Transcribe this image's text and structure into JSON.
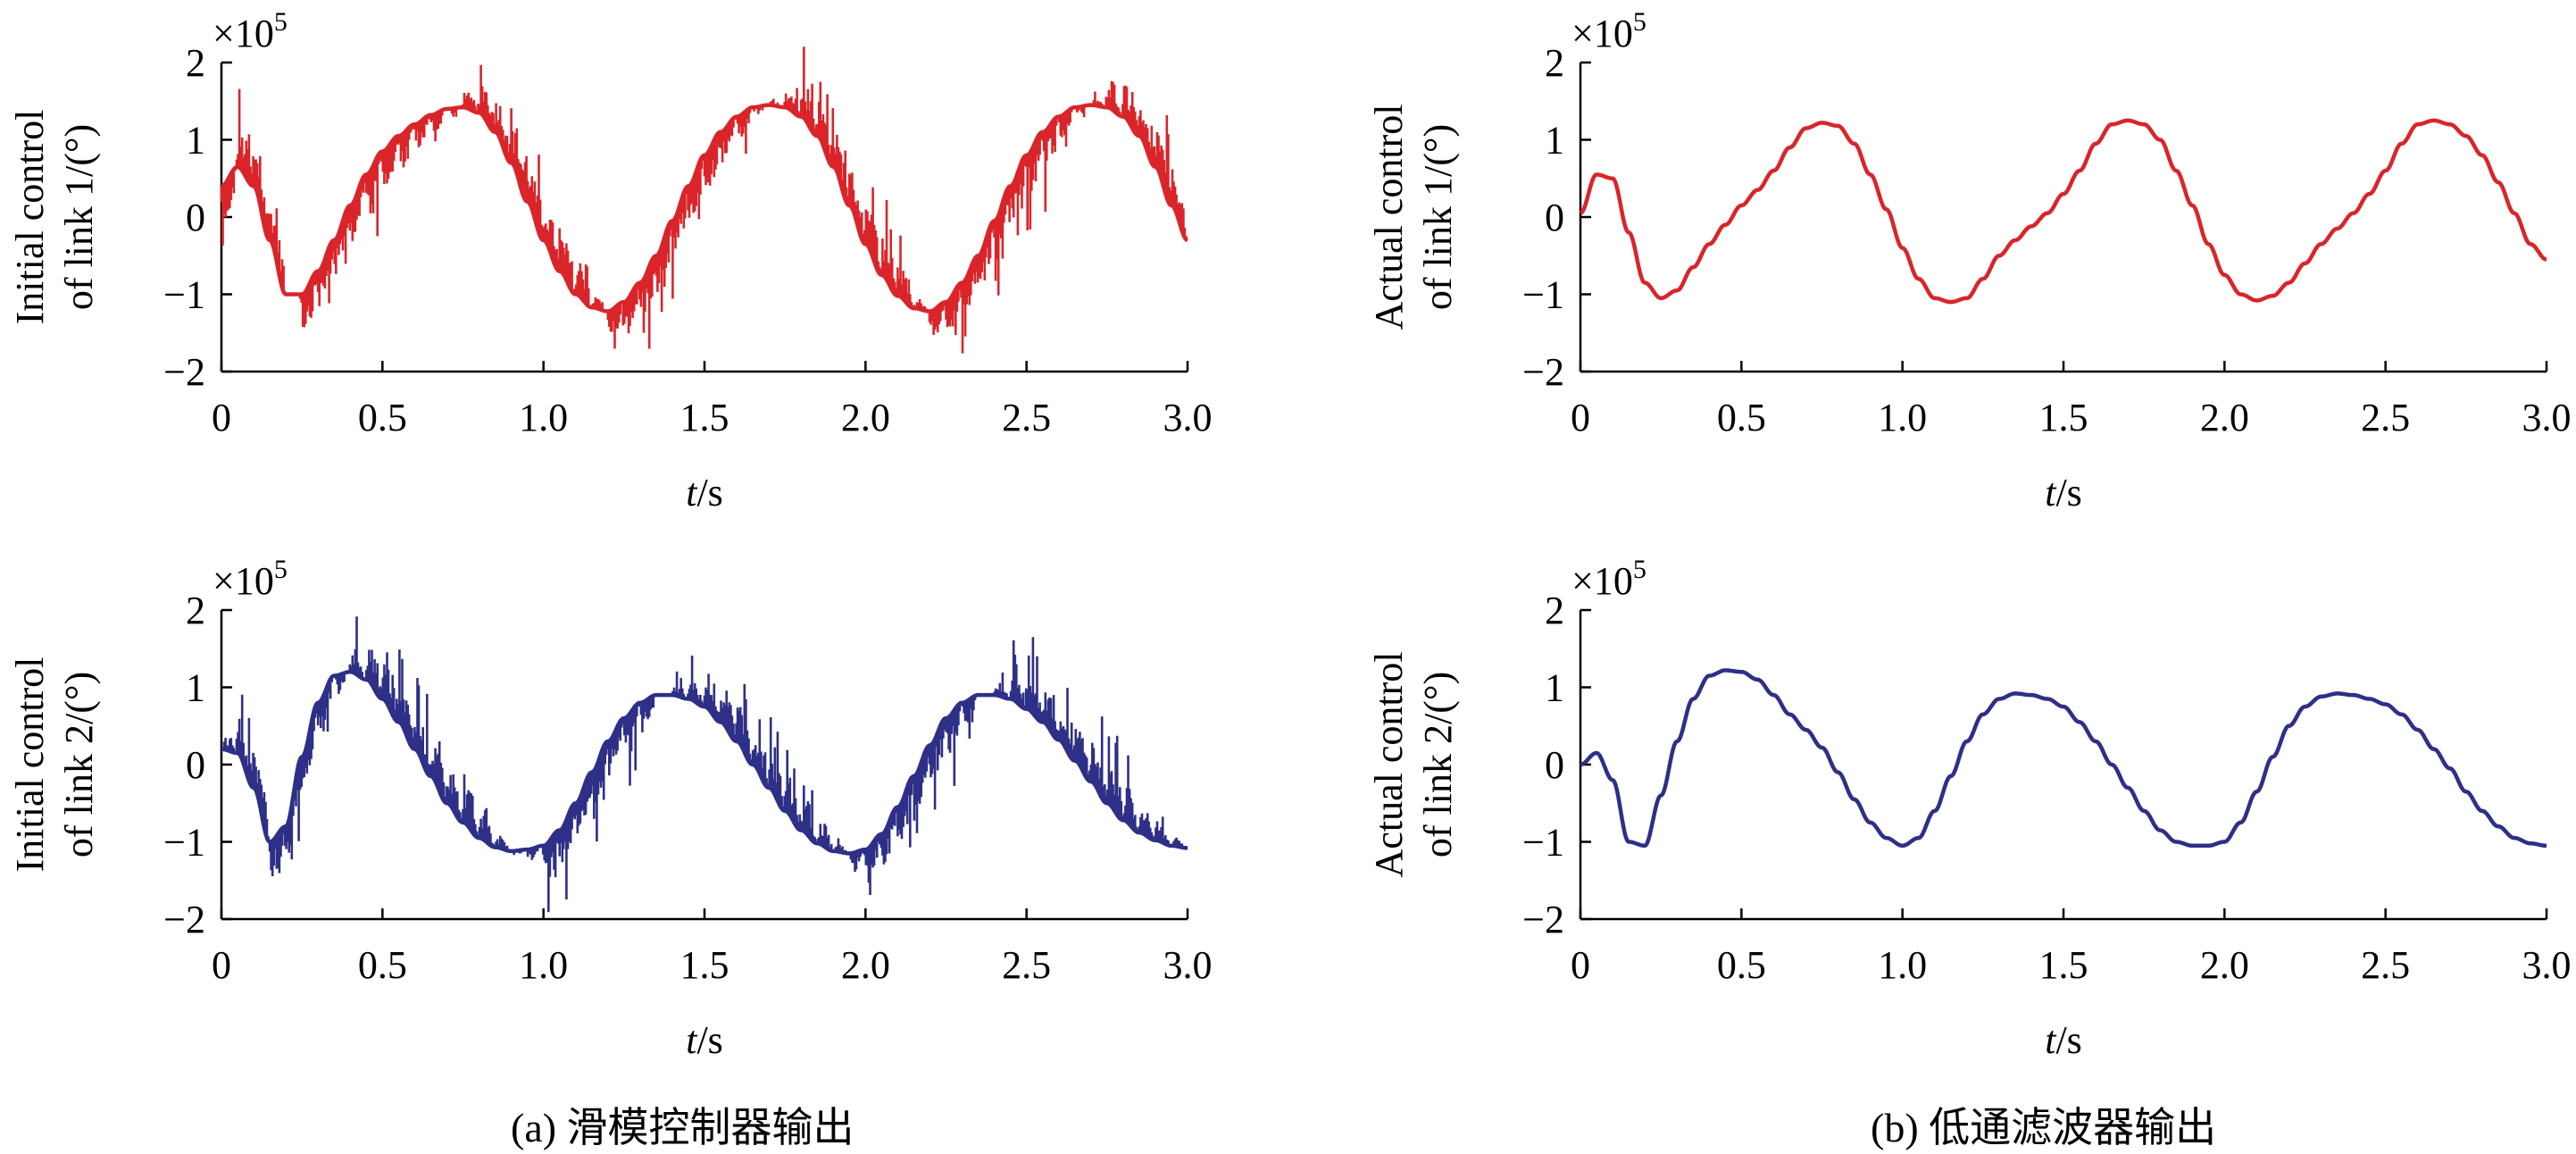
{
  "chart_data": [
    {
      "type": "line",
      "panel": "a-top",
      "multiplier": "×10",
      "exponent": "5",
      "ylabel_line1": "Initial control",
      "ylabel_line2": "of link 1/(°)",
      "xlabel_italic": "t",
      "xlabel_unit": "/s",
      "xlim": [
        0,
        3.0
      ],
      "ylim": [
        -2,
        2
      ],
      "xticks": [
        "0",
        "0.5",
        "1.0",
        "1.5",
        "2.0",
        "2.5",
        "3.0"
      ],
      "yticks": [
        "−2",
        "−1",
        "0",
        "1",
        "2"
      ],
      "color": "#d9252a",
      "noise": "sliding-mode chattering",
      "series": [
        {
          "x": [
            0,
            0.05,
            0.1,
            0.15,
            0.2,
            0.25,
            0.3,
            0.35,
            0.4,
            0.45,
            0.5,
            0.55,
            0.6,
            0.65,
            0.7,
            0.75,
            0.8,
            0.85,
            0.9,
            0.95,
            1.0,
            1.05,
            1.1,
            1.15,
            1.2,
            1.25,
            1.3,
            1.35,
            1.4,
            1.45,
            1.5,
            1.55,
            1.6,
            1.65,
            1.7,
            1.75,
            1.8,
            1.85,
            1.9,
            1.95,
            2.0,
            2.05,
            2.1,
            2.15,
            2.2,
            2.25,
            2.3,
            2.35,
            2.4,
            2.45,
            2.5,
            2.55,
            2.6,
            2.65,
            2.7,
            2.75,
            2.8,
            2.85,
            2.9,
            2.95,
            3.0
          ],
          "values": [
            0.4,
            0.65,
            0.4,
            -0.3,
            -1.0,
            -1.0,
            -0.7,
            -0.3,
            0.15,
            0.55,
            0.85,
            1.05,
            1.2,
            1.32,
            1.4,
            1.42,
            1.35,
            1.1,
            0.7,
            0.2,
            -0.3,
            -0.7,
            -1.0,
            -1.17,
            -1.22,
            -1.1,
            -0.85,
            -0.5,
            -0.05,
            0.4,
            0.8,
            1.1,
            1.3,
            1.42,
            1.45,
            1.42,
            1.3,
            1.05,
            0.65,
            0.15,
            -0.35,
            -0.75,
            -1.02,
            -1.18,
            -1.22,
            -1.1,
            -0.85,
            -0.5,
            -0.05,
            0.4,
            0.8,
            1.1,
            1.3,
            1.42,
            1.45,
            1.42,
            1.3,
            1.05,
            0.65,
            0.15,
            -0.3
          ]
        }
      ]
    },
    {
      "type": "line",
      "panel": "b-top",
      "multiplier": "×10",
      "exponent": "5",
      "ylabel_line1": "Actual control",
      "ylabel_line2": "of link 1/(°)",
      "xlabel_italic": "t",
      "xlabel_unit": "/s",
      "xlim": [
        0,
        3.0
      ],
      "ylim": [
        -2,
        2
      ],
      "xticks": [
        "0",
        "0.5",
        "1.0",
        "1.5",
        "2.0",
        "2.5",
        "3.0"
      ],
      "yticks": [
        "−2",
        "−1",
        "0",
        "1",
        "2"
      ],
      "color": "#d9252a",
      "noise": "none",
      "series": [
        {
          "x": [
            0,
            0.05,
            0.1,
            0.15,
            0.2,
            0.25,
            0.3,
            0.35,
            0.4,
            0.45,
            0.5,
            0.55,
            0.6,
            0.65,
            0.7,
            0.75,
            0.8,
            0.85,
            0.9,
            0.95,
            1.0,
            1.05,
            1.1,
            1.15,
            1.2,
            1.25,
            1.3,
            1.35,
            1.4,
            1.45,
            1.5,
            1.55,
            1.6,
            1.65,
            1.7,
            1.75,
            1.8,
            1.85,
            1.9,
            1.95,
            2.0,
            2.05,
            2.1,
            2.15,
            2.2,
            2.25,
            2.3,
            2.35,
            2.4,
            2.45,
            2.5,
            2.55,
            2.6,
            2.65,
            2.7,
            2.75,
            2.8,
            2.85,
            2.9,
            2.95,
            3.0
          ],
          "values": [
            0.05,
            0.55,
            0.5,
            -0.2,
            -0.85,
            -1.05,
            -0.95,
            -0.65,
            -0.35,
            -0.1,
            0.15,
            0.35,
            0.6,
            0.9,
            1.15,
            1.22,
            1.18,
            0.95,
            0.55,
            0.1,
            -0.4,
            -0.8,
            -1.05,
            -1.1,
            -1.05,
            -0.8,
            -0.5,
            -0.3,
            -0.12,
            0.05,
            0.3,
            0.6,
            0.95,
            1.2,
            1.25,
            1.2,
            1.0,
            0.6,
            0.15,
            -0.35,
            -0.75,
            -1.0,
            -1.08,
            -1.02,
            -0.85,
            -0.6,
            -0.35,
            -0.15,
            0.05,
            0.3,
            0.6,
            0.95,
            1.2,
            1.25,
            1.2,
            1.05,
            0.8,
            0.45,
            0.05,
            -0.35,
            -0.55
          ]
        }
      ]
    },
    {
      "type": "line",
      "panel": "a-bottom",
      "multiplier": "×10",
      "exponent": "5",
      "ylabel_line1": "Initial control",
      "ylabel_line2": "of link 2/(°)",
      "xlabel_italic": "t",
      "xlabel_unit": "/s",
      "xlim": [
        0,
        3.0
      ],
      "ylim": [
        -2,
        2
      ],
      "xticks": [
        "0",
        "0.5",
        "1.0",
        "1.5",
        "2.0",
        "2.5",
        "3.0"
      ],
      "yticks": [
        "−2",
        "−1",
        "0",
        "1",
        "2"
      ],
      "color": "#2e2f86",
      "noise": "sliding-mode chattering",
      "series": [
        {
          "x": [
            0,
            0.05,
            0.1,
            0.15,
            0.2,
            0.25,
            0.3,
            0.35,
            0.4,
            0.45,
            0.5,
            0.55,
            0.6,
            0.65,
            0.7,
            0.75,
            0.8,
            0.85,
            0.9,
            0.95,
            1.0,
            1.05,
            1.1,
            1.15,
            1.2,
            1.25,
            1.3,
            1.35,
            1.4,
            1.45,
            1.5,
            1.55,
            1.6,
            1.65,
            1.7,
            1.75,
            1.8,
            1.85,
            1.9,
            1.95,
            2.0,
            2.05,
            2.1,
            2.15,
            2.2,
            2.25,
            2.3,
            2.35,
            2.4,
            2.45,
            2.5,
            2.55,
            2.6,
            2.65,
            2.7,
            2.75,
            2.8,
            2.85,
            2.9,
            2.95,
            3.0
          ],
          "values": [
            0.2,
            0.15,
            -0.3,
            -1.0,
            -0.8,
            0.1,
            0.8,
            1.15,
            1.2,
            1.1,
            0.85,
            0.55,
            0.2,
            -0.15,
            -0.5,
            -0.75,
            -0.95,
            -1.07,
            -1.12,
            -1.1,
            -1.05,
            -0.85,
            -0.5,
            -0.1,
            0.3,
            0.6,
            0.8,
            0.9,
            0.9,
            0.85,
            0.75,
            0.55,
            0.3,
            0.0,
            -0.3,
            -0.6,
            -0.85,
            -1.02,
            -1.12,
            -1.15,
            -1.1,
            -0.9,
            -0.55,
            -0.15,
            0.25,
            0.6,
            0.8,
            0.9,
            0.9,
            0.85,
            0.72,
            0.55,
            0.32,
            0.05,
            -0.22,
            -0.5,
            -0.72,
            -0.88,
            -0.98,
            -1.05,
            -1.08
          ]
        }
      ]
    },
    {
      "type": "line",
      "panel": "b-bottom",
      "multiplier": "×10",
      "exponent": "5",
      "ylabel_line1": "Actual control",
      "ylabel_line2": "of link 2/(°)",
      "xlabel_italic": "t",
      "xlabel_unit": "/s",
      "xlim": [
        0,
        3.0
      ],
      "ylim": [
        -2,
        2
      ],
      "xticks": [
        "0",
        "0.5",
        "1.0",
        "1.5",
        "2.0",
        "2.5",
        "3.0"
      ],
      "yticks": [
        "−2",
        "−1",
        "0",
        "1",
        "2"
      ],
      "color": "#2e2f86",
      "noise": "none",
      "series": [
        {
          "x": [
            0,
            0.05,
            0.1,
            0.15,
            0.2,
            0.25,
            0.3,
            0.35,
            0.4,
            0.45,
            0.5,
            0.55,
            0.6,
            0.65,
            0.7,
            0.75,
            0.8,
            0.85,
            0.9,
            0.95,
            1.0,
            1.05,
            1.1,
            1.15,
            1.2,
            1.25,
            1.3,
            1.35,
            1.4,
            1.45,
            1.5,
            1.55,
            1.6,
            1.65,
            1.7,
            1.75,
            1.8,
            1.85,
            1.9,
            1.95,
            2.0,
            2.05,
            2.1,
            2.15,
            2.2,
            2.25,
            2.3,
            2.35,
            2.4,
            2.45,
            2.5,
            2.55,
            2.6,
            2.65,
            2.7,
            2.75,
            2.8,
            2.85,
            2.9,
            2.95,
            3.0
          ],
          "values": [
            0.0,
            0.15,
            -0.2,
            -1.0,
            -1.05,
            -0.4,
            0.3,
            0.85,
            1.15,
            1.22,
            1.2,
            1.1,
            0.9,
            0.65,
            0.45,
            0.22,
            -0.1,
            -0.45,
            -0.75,
            -0.95,
            -1.05,
            -0.95,
            -0.6,
            -0.15,
            0.3,
            0.65,
            0.85,
            0.92,
            0.9,
            0.85,
            0.75,
            0.55,
            0.3,
            0.0,
            -0.3,
            -0.6,
            -0.85,
            -1.0,
            -1.05,
            -1.05,
            -1.0,
            -0.75,
            -0.35,
            0.1,
            0.5,
            0.75,
            0.88,
            0.92,
            0.9,
            0.85,
            0.78,
            0.65,
            0.45,
            0.2,
            -0.05,
            -0.35,
            -0.6,
            -0.8,
            -0.95,
            -1.02,
            -1.05
          ]
        }
      ]
    }
  ],
  "captions": {
    "a": "(a) 滑模控制器输出",
    "b": "(b) 低通滤波器输出"
  }
}
